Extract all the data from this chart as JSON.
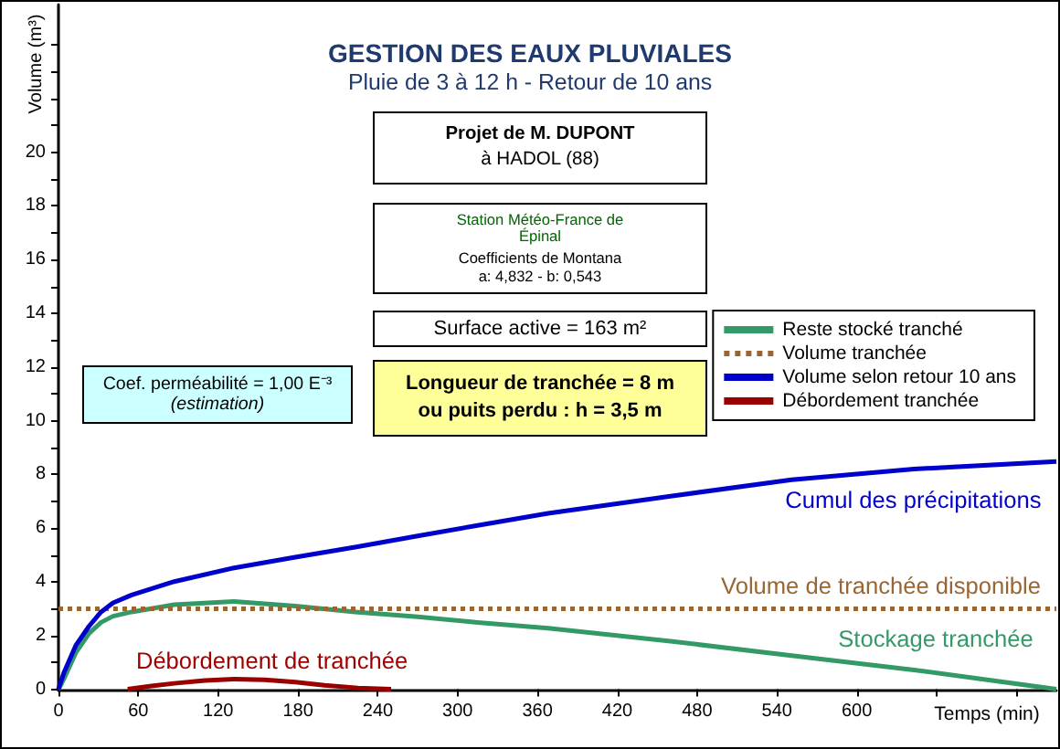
{
  "chart_data": {
    "type": "line",
    "title": "GESTION DES EAUX PLUVIALES",
    "subtitle": "Pluie de 3 à 12 h - Retour de 10 ans",
    "xlabel": "Temps (min)",
    "ylabel": "Volume (m³)",
    "annotations": [
      "Projet de M. DUPONT",
      "à HADOL (88)",
      "Station Météo-France de",
      "Épinal",
      "Coefficients de Montana",
      "a: 4,832 - b: 0,543",
      "Surface active = 163 m²",
      "Coef. perméabilité = 1,00 E⁻³",
      "(estimation)",
      "Longueur de tranchée = 8 m",
      "ou puits perdu : h = 3,5 m",
      "Cumul des précipitations",
      "Volume de tranchée disponible",
      "Stockage tranchée",
      "Débordement de tranchée"
    ],
    "series": [
      {
        "name": "Reste stocké tranché",
        "color": "#339966",
        "x": [
          0,
          4,
          13,
          23,
          32,
          41,
          55,
          87,
          132,
          178,
          223,
          270,
          315,
          368,
          460,
          551,
          643,
          750
        ],
        "values": [
          0,
          0.38,
          1.36,
          2.08,
          2.49,
          2.72,
          2.88,
          3.15,
          3.27,
          3.1,
          2.88,
          2.7,
          2.49,
          2.27,
          1.79,
          1.25,
          0.72,
          0
        ]
      },
      {
        "name": "Volume tranchée",
        "color": "#996633",
        "line_style": "dotted",
        "x": [
          0,
          750
        ],
        "values": [
          3,
          3
        ]
      },
      {
        "name": "Volume selon retour 10 ans",
        "color": "#0000cc",
        "x": [
          0,
          4,
          13,
          23,
          32,
          41,
          55,
          87,
          132,
          178,
          224,
          270,
          315,
          368,
          460,
          551,
          643,
          750
        ],
        "values": [
          0,
          0.61,
          1.63,
          2.35,
          2.88,
          3.22,
          3.51,
          4.01,
          4.52,
          4.92,
          5.3,
          5.71,
          6.1,
          6.55,
          7.19,
          7.8,
          8.2,
          8.48
        ]
      },
      {
        "name": "Débordement tranchée",
        "color": "#990000",
        "x": [
          52,
          70,
          87,
          110,
          132,
          155,
          178,
          200,
          225,
          250
        ],
        "values": [
          0,
          0.12,
          0.22,
          0.33,
          0.38,
          0.35,
          0.27,
          0.15,
          0.05,
          0
        ]
      }
    ],
    "xlim": [
      0,
      750
    ],
    "xticks": [
      0,
      60,
      120,
      180,
      240,
      300,
      360,
      420,
      480,
      540,
      600,
      {
        "value": 660,
        "label": null
      },
      {
        "value": 720,
        "label": null
      }
    ],
    "ylim": [
      0,
      25.5
    ],
    "yticks": [
      0,
      {
        "value": 1,
        "label": null
      },
      2,
      {
        "value": 3,
        "label": null
      },
      4,
      {
        "value": 5,
        "label": null
      },
      6,
      {
        "value": 7,
        "label": null
      },
      8,
      {
        "value": 9,
        "label": null
      },
      10,
      {
        "value": 11,
        "label": null
      },
      12,
      {
        "value": 13,
        "label": null
      },
      14,
      {
        "value": 15,
        "label": null
      },
      16,
      {
        "value": 17,
        "label": null
      },
      18,
      {
        "value": 19,
        "label": null
      },
      20,
      {
        "value": 21,
        "label": null
      },
      {
        "value": 22,
        "label": null
      },
      {
        "value": 23,
        "label": null
      },
      {
        "value": 24,
        "label": null
      }
    ],
    "legend": "right",
    "marker": "none",
    "line_style": "solid"
  }
}
